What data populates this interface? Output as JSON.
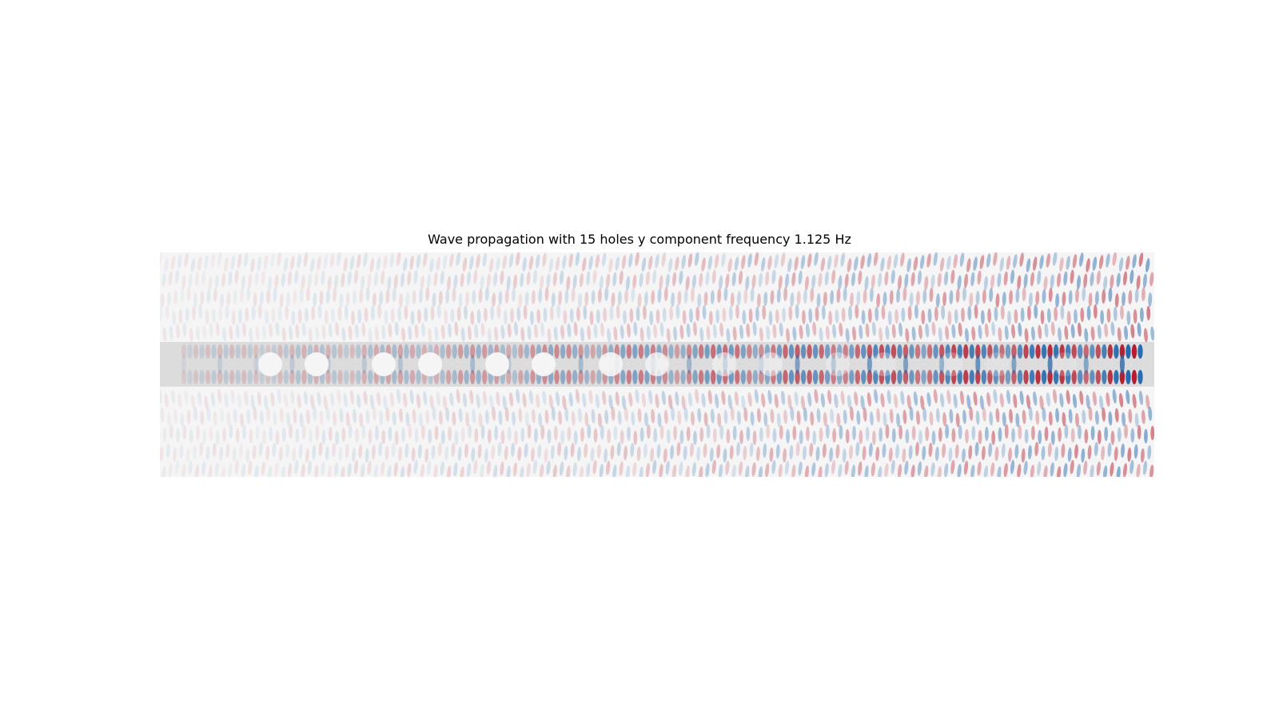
{
  "chart_data": {
    "type": "heatmap",
    "title": "Wave propagation with 15 holes y component frequency 1.125 Hz",
    "xlabel": "",
    "ylabel": "",
    "axes_visible": false,
    "colormap": "diverging red-white-blue",
    "colors": {
      "background": "#f5f5f5",
      "waveguide": "#dcdcdc",
      "positive": "#b2182b",
      "negative": "#2166ac",
      "holes": "#f5f5f5"
    },
    "field": {
      "wave_frequency_hz": 1.125,
      "amplitude_growth": "increasing along x",
      "description_values": [
        0.1,
        0.2,
        0.35,
        0.55,
        0.8,
        1.0
      ]
    },
    "waveguide": {
      "present": true
    },
    "holes": {
      "count": 15,
      "visibility": [
        1,
        1,
        1,
        1,
        1,
        1,
        0.9,
        0.8,
        0.6,
        0.5,
        0.4,
        0.3,
        0.25,
        0.2,
        0.2
      ]
    }
  }
}
